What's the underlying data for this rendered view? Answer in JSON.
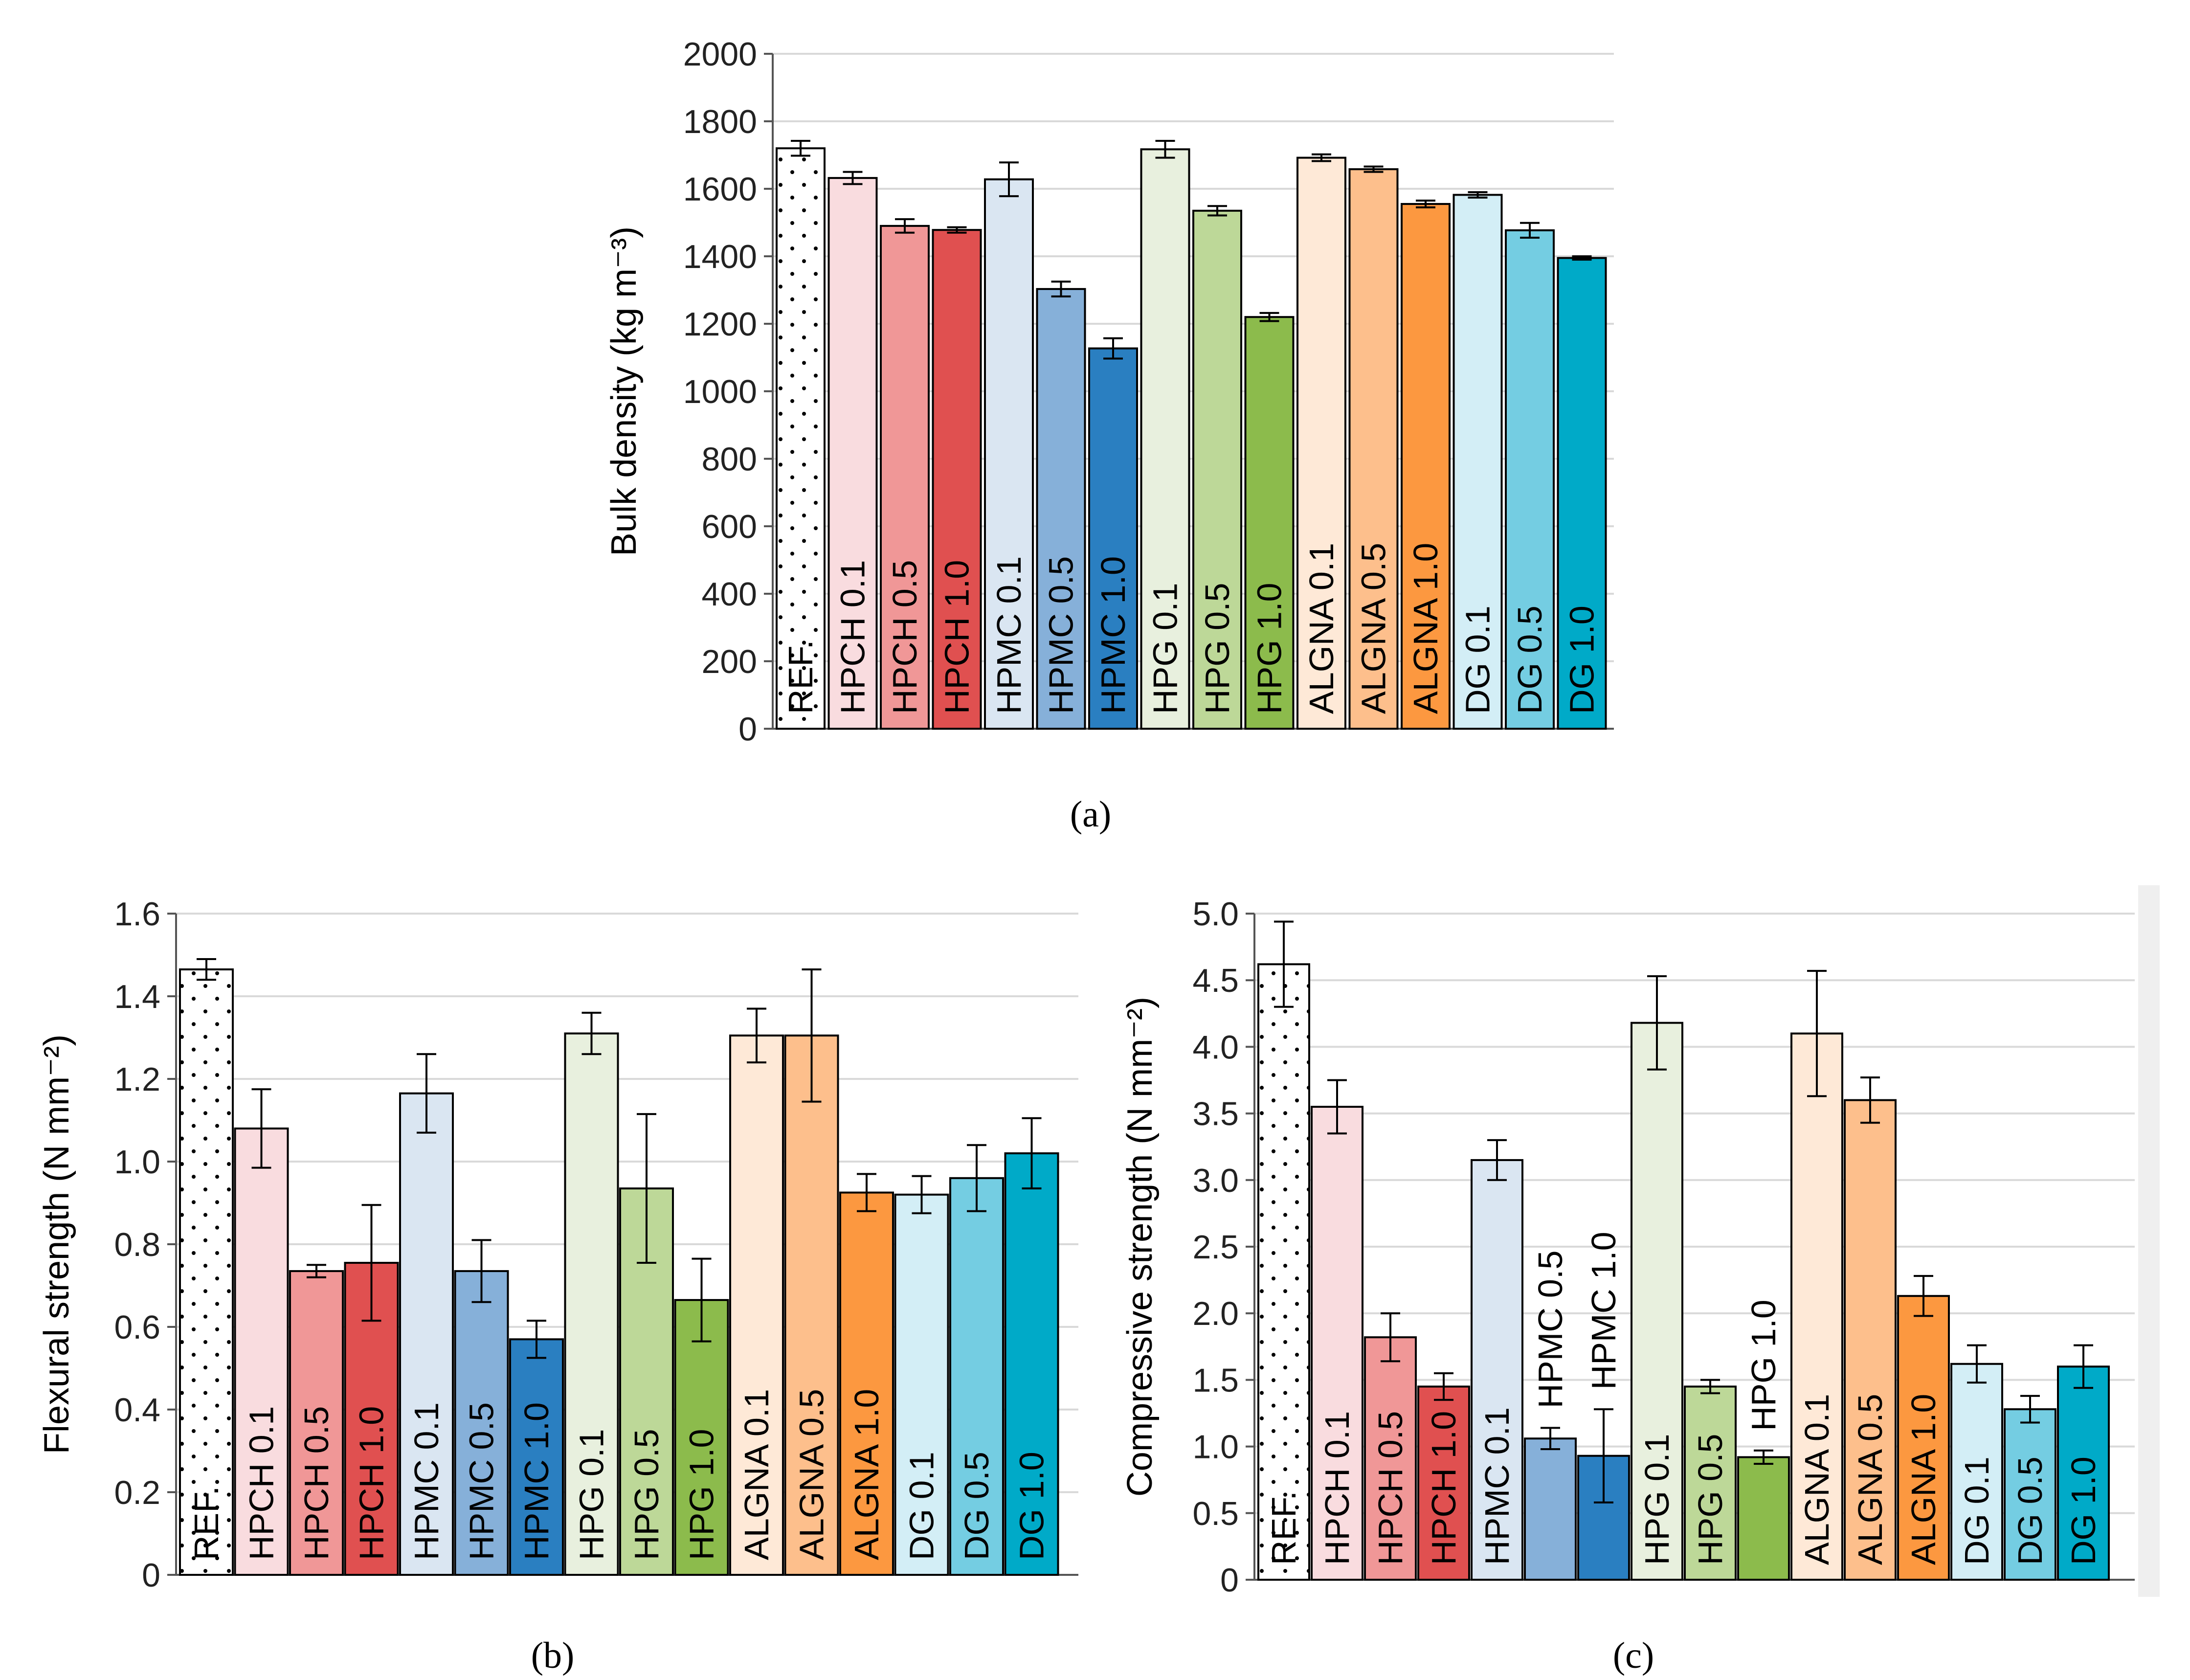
{
  "chart_data": [
    {
      "type": "bar",
      "panel_label": "(a)",
      "ylabel": "Bulk density (kg m⁻³)",
      "ylim": [
        0,
        2000
      ],
      "yticks": [
        "0",
        "200",
        "400",
        "600",
        "800",
        "1000",
        "1200",
        "1400",
        "1600",
        "1800",
        "2000"
      ],
      "ytick_values": [
        0,
        200,
        400,
        600,
        800,
        1000,
        1200,
        1400,
        1600,
        1800,
        2000
      ],
      "categories": [
        "REF.",
        "HPCH 0.1",
        "HPCH 0.5",
        "HPCH 1.0",
        "HPMC 0.1",
        "HPMC 0.5",
        "HPMC 1.0",
        "HPG 0.1",
        "HPG 0.5",
        "HPG 1.0",
        "ALGNA 0.1",
        "ALGNA 0.5",
        "ALGNA 1.0",
        "DG 0.1",
        "DG 0.5",
        "DG 1.0"
      ],
      "values": [
        1720,
        1632,
        1490,
        1478,
        1628,
        1303,
        1127,
        1717,
        1535,
        1220,
        1692,
        1658,
        1555,
        1582,
        1477,
        1395
      ],
      "errors": [
        22,
        18,
        20,
        8,
        50,
        22,
        30,
        25,
        14,
        12,
        10,
        8,
        10,
        8,
        22,
        5
      ],
      "grid": true
    },
    {
      "type": "bar",
      "panel_label": "(b)",
      "ylabel": "Flexural strength (N mm⁻²)",
      "ylim": [
        0,
        1.6
      ],
      "yticks": [
        "0",
        "0.2",
        "0.4",
        "0.6",
        "0.8",
        "1.0",
        "1.2",
        "1.4",
        "1.6"
      ],
      "ytick_values": [
        0,
        0.2,
        0.4,
        0.6,
        0.8,
        1.0,
        1.2,
        1.4,
        1.6
      ],
      "categories": [
        "REF.",
        "HPCH 0.1",
        "HPCH 0.5",
        "HPCH 1.0",
        "HPMC 0.1",
        "HPMC 0.5",
        "HPMC 1.0",
        "HPG 0.1",
        "HPG 0.5",
        "HPG 1.0",
        "ALGNA 0.1",
        "ALGNA 0.5",
        "ALGNA 1.0",
        "DG 0.1",
        "DG 0.5",
        "DG 1.0"
      ],
      "values": [
        1.465,
        1.08,
        0.735,
        0.755,
        1.165,
        0.735,
        0.57,
        1.31,
        0.935,
        0.665,
        1.305,
        1.305,
        0.925,
        0.92,
        0.96,
        1.02
      ],
      "errors": [
        0.025,
        0.095,
        0.015,
        0.14,
        0.095,
        0.075,
        0.045,
        0.05,
        0.18,
        0.1,
        0.065,
        0.16,
        0.045,
        0.045,
        0.08,
        0.085
      ],
      "grid": true
    },
    {
      "type": "bar",
      "panel_label": "(c)",
      "ylabel": "Compressive strength (N mm⁻²)",
      "ylim": [
        0,
        5.0
      ],
      "yticks": [
        "0",
        "0.5",
        "1.0",
        "1.5",
        "2.0",
        "2.5",
        "3.0",
        "3.5",
        "4.0",
        "4.5",
        "5.0"
      ],
      "ytick_values": [
        0,
        0.5,
        1.0,
        1.5,
        2.0,
        2.5,
        3.0,
        3.5,
        4.0,
        4.5,
        5.0
      ],
      "categories": [
        "REF.",
        "HPCH 0.1",
        "HPCH 0.5",
        "HPCH 1.0",
        "HPMC 0.1",
        "HPMC 0.5",
        "HPMC 1.0",
        "HPG 0.1",
        "HPG 0.5",
        "HPG 1.0",
        "ALGNA 0.1",
        "ALGNA 0.5",
        "ALGNA 1.0",
        "DG 0.1",
        "DG 0.5",
        "DG 1.0"
      ],
      "values": [
        4.62,
        3.55,
        1.82,
        1.45,
        3.15,
        1.06,
        0.93,
        4.18,
        1.45,
        0.92,
        4.1,
        3.6,
        2.13,
        1.62,
        1.28,
        1.6
      ],
      "errors": [
        0.32,
        0.2,
        0.18,
        0.1,
        0.15,
        0.08,
        0.35,
        0.35,
        0.05,
        0.05,
        0.47,
        0.17,
        0.15,
        0.14,
        0.1,
        0.16
      ],
      "grid": true
    }
  ],
  "colors": [
    "#ffffff",
    "#f9dcdf",
    "#f09797",
    "#e05050",
    "#dae6f2",
    "#86b0d9",
    "#2a7fc1",
    "#e8f0de",
    "#bdd898",
    "#8cbb4c",
    "#fee9d7",
    "#fdbf8c",
    "#fc9840",
    "#d3eef6",
    "#74cde2",
    "#00aac8"
  ]
}
